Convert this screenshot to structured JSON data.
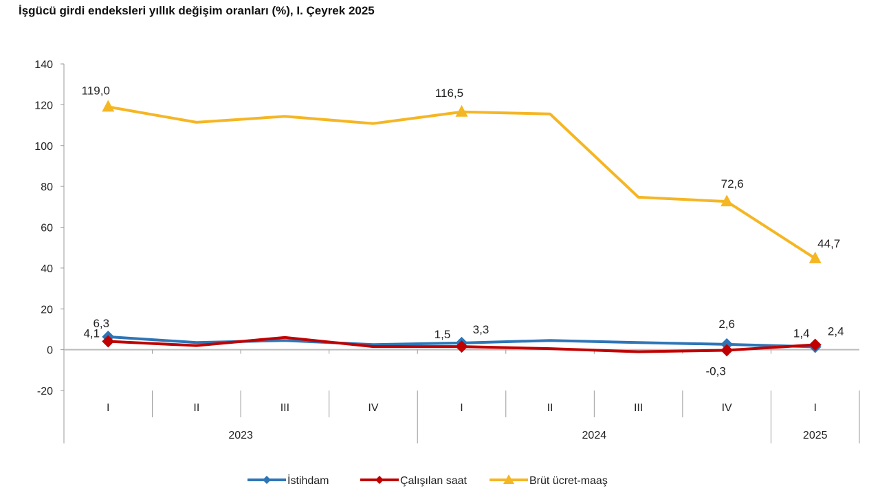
{
  "chart_data": {
    "type": "line",
    "title": "İşgücü girdi endeksleri yıllık değişim oranları (%), I. Çeyrek 2025",
    "categories": [
      "I",
      "II",
      "III",
      "IV",
      "I",
      "II",
      "III",
      "IV",
      "I"
    ],
    "years": [
      {
        "label": "2023",
        "span": 4
      },
      {
        "label": "2024",
        "span": 4
      },
      {
        "label": "2025",
        "span": 1
      }
    ],
    "ylim": [
      -20,
      140
    ],
    "yticks": [
      -20,
      0,
      20,
      40,
      60,
      80,
      100,
      120,
      140
    ],
    "series": [
      {
        "name": "İstihdam",
        "color": "#2e75b6",
        "marker": "diamond",
        "values": [
          6.3,
          3.5,
          4.5,
          2.5,
          3.3,
          4.5,
          3.5,
          2.6,
          1.4
        ],
        "labels": [
          {
            "index": 0,
            "text": "6,3"
          },
          {
            "index": 4,
            "text": "3,3"
          },
          {
            "index": 7,
            "text": "2,6"
          },
          {
            "index": 8,
            "text": "1,4"
          }
        ]
      },
      {
        "name": "Çalışılan saat",
        "color": "#c00000",
        "marker": "diamond",
        "values": [
          4.1,
          2.0,
          6.0,
          1.5,
          1.5,
          0.5,
          -1.0,
          -0.3,
          2.4
        ],
        "labels": [
          {
            "index": 0,
            "text": "4,1"
          },
          {
            "index": 4,
            "text": "1,5"
          },
          {
            "index": 7,
            "text": "-0,3"
          },
          {
            "index": 8,
            "text": "2,4"
          }
        ]
      },
      {
        "name": "Brüt ücret-maaş",
        "color": "#f5b623",
        "marker": "triangle",
        "values": [
          119.0,
          111.4,
          114.3,
          110.8,
          116.5,
          115.5,
          74.7,
          72.6,
          44.7
        ],
        "labels": [
          {
            "index": 0,
            "text": "119,0"
          },
          {
            "index": 4,
            "text": "116,5"
          },
          {
            "index": 7,
            "text": "72,6"
          },
          {
            "index": 8,
            "text": "44,7"
          }
        ]
      }
    ],
    "legend": "bottom",
    "grid": false
  }
}
